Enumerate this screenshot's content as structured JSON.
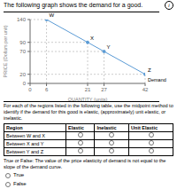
{
  "chart_data": {
    "type": "line",
    "title": "The following graph shows the demand for a good.",
    "icon": "i",
    "xlabel": "QUANTITY (units)",
    "ylabel": "PRICE (Dollars per unit)",
    "x": [
      6,
      21,
      27,
      42
    ],
    "values": [
      140,
      90,
      70,
      20
    ],
    "point_labels": [
      "W",
      "X",
      "Y",
      "Z"
    ],
    "annotations": [
      "Demand"
    ],
    "color": "#5b9bd5",
    "marker": "circle",
    "line_style": "solid",
    "xlim": [
      0,
      42
    ],
    "ylim": [
      0,
      140
    ],
    "xticks": [
      0,
      6,
      21,
      27,
      42
    ],
    "yticks": [
      0,
      20,
      70,
      90,
      140
    ],
    "grid": false,
    "table_title": "For each of the regions listed in the following table, use the midpoint method to identify if the demand for this good is elastic, (approximately) unit elastic, or inelastic.",
    "table_headers": [
      "Region",
      "Elastic",
      "Inelastic",
      "Unit Elastic"
    ],
    "table_rows": [
      "Between W and X",
      "Between X and Y",
      "Between Y and Z"
    ],
    "true_false_text": "True or False: The value of the price elasticity of demand is not equal to the slope of the demand curve.",
    "true_option": "True",
    "false_option": "False"
  }
}
